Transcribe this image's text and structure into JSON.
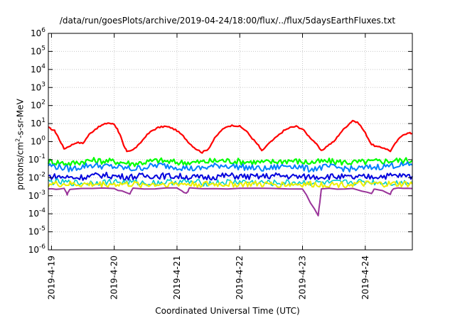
{
  "title": "/data/run/goesPlots/archive/2019-04-24/18:00/flux/../flux/5daysEarthFluxes.txt",
  "chart_data": {
    "type": "line",
    "title": "/data/run/goesPlots/archive/2019-04-24/18:00/flux/../flux/5daysEarthFluxes.txt",
    "xlabel": "Coordinated Universal Time (UTC)",
    "ylabel": "protons/cm²-s-sr-MeV",
    "ylabel_parts": {
      "pre": "protons/cm",
      "sup": "2",
      "post": "-s-sr-MeV"
    },
    "y_scale": "log",
    "ylim": [
      1e-06,
      1000000.0
    ],
    "y_ticks": [
      {
        "exp": -6,
        "label": "-6"
      },
      {
        "exp": -5,
        "label": "-5"
      },
      {
        "exp": -4,
        "label": "-4"
      },
      {
        "exp": -3,
        "label": "-3"
      },
      {
        "exp": -2,
        "label": "-2"
      },
      {
        "exp": -1,
        "label": "-1"
      },
      {
        "exp": 0,
        "label": "0"
      },
      {
        "exp": 1,
        "label": "1"
      },
      {
        "exp": 2,
        "label": "2"
      },
      {
        "exp": 3,
        "label": "3"
      },
      {
        "exp": 4,
        "label": "4"
      },
      {
        "exp": 5,
        "label": "5"
      },
      {
        "exp": 6,
        "label": "6"
      }
    ],
    "y_tick_base": "10",
    "x_range_days": [
      -0.05,
      5.75
    ],
    "x_ticks": [
      {
        "day": 0,
        "label": "2019-4-19"
      },
      {
        "day": 1,
        "label": "2019-4-20"
      },
      {
        "day": 2,
        "label": "2019-4-21"
      },
      {
        "day": 3,
        "label": "2019-4-22"
      },
      {
        "day": 4,
        "label": "2019-4-23"
      },
      {
        "day": 5,
        "label": "2019-4-24"
      }
    ],
    "grid": true,
    "series": [
      {
        "color": "#ff0000",
        "width": 2.2,
        "points": [
          [
            -0.05,
            6
          ],
          [
            0.05,
            4
          ],
          [
            0.1,
            2
          ],
          [
            0.2,
            0.4
          ],
          [
            0.3,
            0.6
          ],
          [
            0.4,
            0.9
          ],
          [
            0.5,
            0.8
          ],
          [
            0.6,
            2.5
          ],
          [
            0.7,
            5
          ],
          [
            0.8,
            8
          ],
          [
            0.9,
            11
          ],
          [
            1.0,
            9
          ],
          [
            1.05,
            5
          ],
          [
            1.1,
            2
          ],
          [
            1.15,
            0.6
          ],
          [
            1.2,
            0.3
          ],
          [
            1.3,
            0.35
          ],
          [
            1.4,
            0.7
          ],
          [
            1.5,
            2
          ],
          [
            1.6,
            4
          ],
          [
            1.7,
            6
          ],
          [
            1.8,
            7
          ],
          [
            1.9,
            6
          ],
          [
            2.0,
            4
          ],
          [
            2.1,
            2
          ],
          [
            2.2,
            0.8
          ],
          [
            2.3,
            0.4
          ],
          [
            2.4,
            0.25
          ],
          [
            2.5,
            0.4
          ],
          [
            2.6,
            1.5
          ],
          [
            2.7,
            4
          ],
          [
            2.8,
            7
          ],
          [
            2.9,
            8
          ],
          [
            3.0,
            7
          ],
          [
            3.1,
            4
          ],
          [
            3.2,
            1.5
          ],
          [
            3.3,
            0.6
          ],
          [
            3.35,
            0.3
          ],
          [
            3.45,
            0.7
          ],
          [
            3.6,
            2
          ],
          [
            3.7,
            4
          ],
          [
            3.8,
            6
          ],
          [
            3.9,
            7
          ],
          [
            4.0,
            5
          ],
          [
            4.1,
            2
          ],
          [
            4.2,
            0.9
          ],
          [
            4.3,
            0.3
          ],
          [
            4.4,
            0.6
          ],
          [
            4.5,
            1
          ],
          [
            4.6,
            3
          ],
          [
            4.7,
            7
          ],
          [
            4.8,
            15
          ],
          [
            4.9,
            10
          ],
          [
            5.0,
            3
          ],
          [
            5.1,
            0.7
          ],
          [
            5.2,
            0.5
          ],
          [
            5.3,
            0.45
          ],
          [
            5.4,
            0.3
          ],
          [
            5.5,
            1
          ],
          [
            5.6,
            2.5
          ],
          [
            5.7,
            3
          ],
          [
            5.75,
            2.8
          ]
        ]
      },
      {
        "color": "#00ff00",
        "width": 2.2,
        "points": [
          [
            -0.05,
            0.08
          ],
          [
            0.3,
            0.06
          ],
          [
            0.6,
            0.09
          ],
          [
            1.0,
            0.08
          ],
          [
            1.3,
            0.06
          ],
          [
            1.7,
            0.09
          ],
          [
            2.0,
            0.07
          ],
          [
            2.3,
            0.07
          ],
          [
            2.7,
            0.09
          ],
          [
            3.0,
            0.08
          ],
          [
            3.4,
            0.07
          ],
          [
            3.8,
            0.09
          ],
          [
            4.1,
            0.07
          ],
          [
            4.4,
            0.08
          ],
          [
            4.8,
            0.07
          ],
          [
            5.2,
            0.08
          ],
          [
            5.5,
            0.09
          ],
          [
            5.75,
            0.09
          ]
        ]
      },
      {
        "color": "#0080ff",
        "width": 2.0,
        "points": [
          [
            -0.05,
            0.05
          ],
          [
            0.3,
            0.03
          ],
          [
            0.6,
            0.05
          ],
          [
            1.0,
            0.04
          ],
          [
            1.3,
            0.03
          ],
          [
            1.7,
            0.05
          ],
          [
            2.0,
            0.04
          ],
          [
            2.3,
            0.03
          ],
          [
            2.7,
            0.05
          ],
          [
            3.0,
            0.04
          ],
          [
            3.4,
            0.03
          ],
          [
            3.8,
            0.05
          ],
          [
            4.1,
            0.03
          ],
          [
            4.4,
            0.04
          ],
          [
            4.8,
            0.03
          ],
          [
            5.2,
            0.04
          ],
          [
            5.5,
            0.05
          ],
          [
            5.75,
            0.05
          ]
        ]
      },
      {
        "color": "#0000dd",
        "width": 2.0,
        "points": [
          [
            -0.05,
            0.012
          ],
          [
            0.4,
            0.01
          ],
          [
            0.8,
            0.014
          ],
          [
            1.2,
            0.011
          ],
          [
            1.6,
            0.013
          ],
          [
            2.0,
            0.012
          ],
          [
            2.4,
            0.01
          ],
          [
            2.8,
            0.013
          ],
          [
            3.2,
            0.011
          ],
          [
            3.6,
            0.013
          ],
          [
            4.0,
            0.011
          ],
          [
            4.4,
            0.012
          ],
          [
            4.8,
            0.01
          ],
          [
            5.2,
            0.012
          ],
          [
            5.5,
            0.013
          ],
          [
            5.75,
            0.012
          ]
        ]
      },
      {
        "color": "#00cccc",
        "width": 1.6,
        "points": [
          [
            -0.05,
            0.006
          ],
          [
            0.5,
            0.005
          ],
          [
            1.0,
            0.006
          ],
          [
            1.5,
            0.005
          ],
          [
            2.0,
            0.006
          ],
          [
            2.5,
            0.005
          ],
          [
            3.0,
            0.006
          ],
          [
            3.5,
            0.005
          ],
          [
            4.0,
            0.0055
          ],
          [
            4.5,
            0.005
          ],
          [
            5.0,
            0.006
          ],
          [
            5.5,
            0.005
          ],
          [
            5.75,
            0.006
          ]
        ]
      },
      {
        "color": "#eeee00",
        "width": 2.0,
        "points": [
          [
            -0.05,
            0.0045
          ],
          [
            0.5,
            0.0042
          ],
          [
            1.0,
            0.0044
          ],
          [
            1.5,
            0.0042
          ],
          [
            2.0,
            0.0045
          ],
          [
            2.5,
            0.0043
          ],
          [
            3.0,
            0.0044
          ],
          [
            3.5,
            0.0042
          ],
          [
            4.0,
            0.0043
          ],
          [
            4.5,
            0.0042
          ],
          [
            5.0,
            0.0044
          ],
          [
            5.5,
            0.0043
          ],
          [
            5.75,
            0.0044
          ]
        ]
      },
      {
        "color": "#993399",
        "width": 2.0,
        "points": [
          [
            -0.05,
            0.0025
          ],
          [
            0.2,
            0.0024
          ],
          [
            0.25,
            0.0012
          ],
          [
            0.3,
            0.0024
          ],
          [
            1.0,
            0.0025
          ],
          [
            1.25,
            0.0013
          ],
          [
            1.3,
            0.0025
          ],
          [
            2.0,
            0.0025
          ],
          [
            2.15,
            0.0013
          ],
          [
            2.2,
            0.0025
          ],
          [
            3.0,
            0.0025
          ],
          [
            4.0,
            0.0024
          ],
          [
            4.25,
            8e-05
          ],
          [
            4.3,
            0.0024
          ],
          [
            4.8,
            0.0025
          ],
          [
            5.1,
            0.0013
          ],
          [
            5.15,
            0.0025
          ],
          [
            5.4,
            0.0013
          ],
          [
            5.45,
            0.0025
          ],
          [
            5.75,
            0.0025
          ]
        ]
      }
    ]
  }
}
